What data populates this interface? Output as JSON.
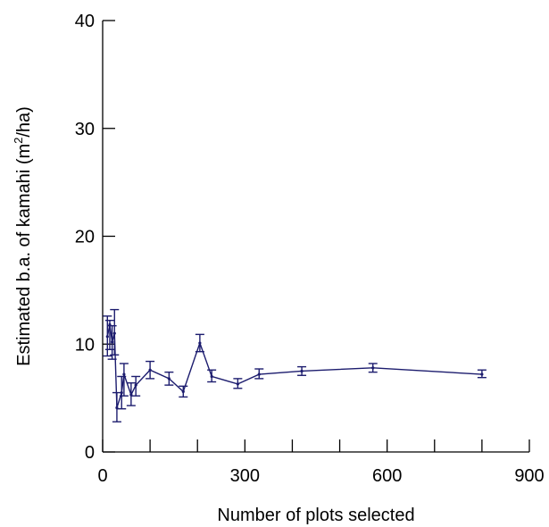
{
  "chart_data": {
    "type": "line",
    "title": "",
    "xlabel": "Number of plots selected",
    "ylabel_parts": {
      "before": "Estimated b.a. of kamahi (m",
      "sup": "2",
      "after": "/ha)"
    },
    "xlim": [
      0,
      900
    ],
    "ylim": [
      0,
      40
    ],
    "x_ticks_labeled": [
      0,
      300,
      600,
      900
    ],
    "x_ticks_minor": [
      100,
      200,
      400,
      500,
      700,
      800
    ],
    "y_ticks": [
      0,
      10,
      20,
      30,
      40
    ],
    "grid": false,
    "legend": "none",
    "series_color": "#1c1c6e",
    "series": [
      {
        "points": [
          {
            "x": 10,
            "y": 10.7,
            "lo": 8.9,
            "hi": 12.6
          },
          {
            "x": 15,
            "y": 11.8,
            "lo": 9.5,
            "hi": 12.2
          },
          {
            "x": 20,
            "y": 10.2,
            "lo": 8.6,
            "hi": 11.7
          },
          {
            "x": 25,
            "y": 11.0,
            "lo": 9.0,
            "hi": 13.2
          },
          {
            "x": 30,
            "y": 4.1,
            "lo": 2.8,
            "hi": 5.5
          },
          {
            "x": 40,
            "y": 5.5,
            "lo": 4.0,
            "hi": 7.0
          },
          {
            "x": 45,
            "y": 7.2,
            "lo": 5.2,
            "hi": 8.2
          },
          {
            "x": 60,
            "y": 5.3,
            "lo": 4.3,
            "hi": 6.4
          },
          {
            "x": 70,
            "y": 6.2,
            "lo": 5.2,
            "hi": 7.0
          },
          {
            "x": 100,
            "y": 7.6,
            "lo": 6.8,
            "hi": 8.4
          },
          {
            "x": 140,
            "y": 6.8,
            "lo": 6.2,
            "hi": 7.4
          },
          {
            "x": 170,
            "y": 5.6,
            "lo": 5.1,
            "hi": 6.1
          },
          {
            "x": 205,
            "y": 10.1,
            "lo": 9.3,
            "hi": 10.9
          },
          {
            "x": 230,
            "y": 7.0,
            "lo": 6.5,
            "hi": 7.6
          },
          {
            "x": 285,
            "y": 6.3,
            "lo": 5.9,
            "hi": 6.8
          },
          {
            "x": 330,
            "y": 7.2,
            "lo": 6.8,
            "hi": 7.7
          },
          {
            "x": 420,
            "y": 7.5,
            "lo": 7.1,
            "hi": 7.9
          },
          {
            "x": 570,
            "y": 7.8,
            "lo": 7.4,
            "hi": 8.2
          },
          {
            "x": 800,
            "y": 7.2,
            "lo": 6.9,
            "hi": 7.6
          }
        ]
      }
    ]
  }
}
